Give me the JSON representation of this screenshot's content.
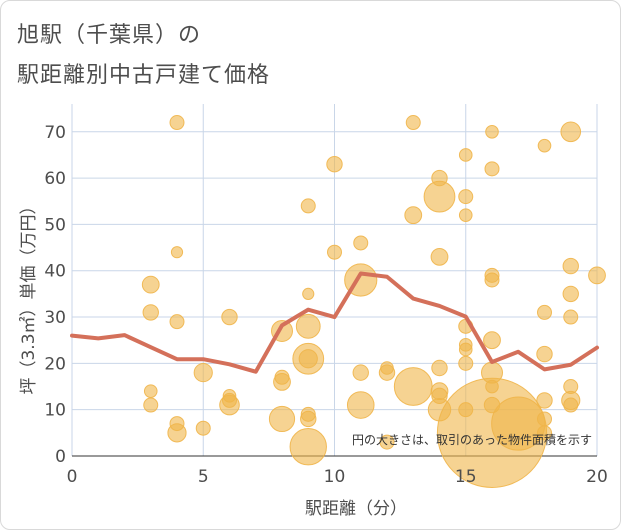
{
  "title_line1": "旭駅（千葉県）の",
  "title_line2": "駅距離別中古戸建て価格",
  "chart_data": {
    "type": "scatter",
    "title": "旭駅（千葉県）の駅距離別中古戸建て価格",
    "xlabel": "駅距離（分）",
    "ylabel": "坪（3.3㎡）単価（万円）",
    "xlim": [
      0,
      20
    ],
    "ylim": [
      0,
      76
    ],
    "xticks": [
      0,
      5,
      10,
      15,
      20
    ],
    "yticks": [
      0,
      10,
      20,
      30,
      40,
      50,
      60,
      70
    ],
    "grid": true,
    "note": "円の大きさは、取引のあった物件面積を示す",
    "colors": {
      "bubble": "#f0b54a",
      "line": "#d4705a",
      "grid": "#c9d6e8"
    },
    "bubbles": [
      {
        "x": 3,
        "y": 37,
        "s": 1.2
      },
      {
        "x": 3,
        "y": 31,
        "s": 1.1
      },
      {
        "x": 3,
        "y": 14,
        "s": 0.9
      },
      {
        "x": 3,
        "y": 11,
        "s": 1.0
      },
      {
        "x": 4,
        "y": 72,
        "s": 1.0
      },
      {
        "x": 4,
        "y": 44,
        "s": 0.8
      },
      {
        "x": 4,
        "y": 29,
        "s": 1.0
      },
      {
        "x": 4,
        "y": 7,
        "s": 1.0
      },
      {
        "x": 4,
        "y": 5,
        "s": 1.3
      },
      {
        "x": 5,
        "y": 18,
        "s": 1.3
      },
      {
        "x": 5,
        "y": 6,
        "s": 1.0
      },
      {
        "x": 6,
        "y": 30,
        "s": 1.1
      },
      {
        "x": 6,
        "y": 13,
        "s": 0.9
      },
      {
        "x": 6,
        "y": 12,
        "s": 1.0
      },
      {
        "x": 6,
        "y": 11,
        "s": 1.4
      },
      {
        "x": 8,
        "y": 27,
        "s": 1.5
      },
      {
        "x": 8,
        "y": 17,
        "s": 1.0
      },
      {
        "x": 8,
        "y": 16,
        "s": 1.2
      },
      {
        "x": 8,
        "y": 8,
        "s": 1.8
      },
      {
        "x": 9,
        "y": 54,
        "s": 1.0
      },
      {
        "x": 9,
        "y": 35,
        "s": 0.8
      },
      {
        "x": 9,
        "y": 28,
        "s": 1.7
      },
      {
        "x": 9,
        "y": 21,
        "s": 2.2
      },
      {
        "x": 9,
        "y": 21,
        "s": 1.3
      },
      {
        "x": 9,
        "y": 9,
        "s": 1.0
      },
      {
        "x": 9,
        "y": 8,
        "s": 1.1
      },
      {
        "x": 9,
        "y": 2,
        "s": 2.6
      },
      {
        "x": 10,
        "y": 63,
        "s": 1.1
      },
      {
        "x": 10,
        "y": 44,
        "s": 1.0
      },
      {
        "x": 11,
        "y": 46,
        "s": 1.0
      },
      {
        "x": 11,
        "y": 38,
        "s": 2.3
      },
      {
        "x": 11,
        "y": 18,
        "s": 1.1
      },
      {
        "x": 11,
        "y": 11,
        "s": 1.9
      },
      {
        "x": 12,
        "y": 19,
        "s": 0.9
      },
      {
        "x": 12,
        "y": 18,
        "s": 1.1
      },
      {
        "x": 12,
        "y": 3,
        "s": 1.0
      },
      {
        "x": 13,
        "y": 72,
        "s": 1.0
      },
      {
        "x": 13,
        "y": 52,
        "s": 1.2
      },
      {
        "x": 13,
        "y": 15,
        "s": 2.7
      },
      {
        "x": 14,
        "y": 60,
        "s": 1.1
      },
      {
        "x": 14,
        "y": 56,
        "s": 2.2
      },
      {
        "x": 14,
        "y": 43,
        "s": 1.2
      },
      {
        "x": 14,
        "y": 19,
        "s": 1.1
      },
      {
        "x": 14,
        "y": 14,
        "s": 1.2
      },
      {
        "x": 14,
        "y": 13,
        "s": 1.1
      },
      {
        "x": 14,
        "y": 10,
        "s": 1.6
      },
      {
        "x": 15,
        "y": 65,
        "s": 0.9
      },
      {
        "x": 15,
        "y": 56,
        "s": 1.0
      },
      {
        "x": 15,
        "y": 52,
        "s": 0.9
      },
      {
        "x": 15,
        "y": 28,
        "s": 1.0
      },
      {
        "x": 15,
        "y": 24,
        "s": 0.9
      },
      {
        "x": 15,
        "y": 23,
        "s": 0.9
      },
      {
        "x": 15,
        "y": 20,
        "s": 1.0
      },
      {
        "x": 15,
        "y": 10,
        "s": 1.0
      },
      {
        "x": 16,
        "y": 70,
        "s": 0.9
      },
      {
        "x": 16,
        "y": 62,
        "s": 1.0
      },
      {
        "x": 16,
        "y": 39,
        "s": 1.0
      },
      {
        "x": 16,
        "y": 38,
        "s": 1.0
      },
      {
        "x": 16,
        "y": 25,
        "s": 1.2
      },
      {
        "x": 16,
        "y": 18,
        "s": 1.5
      },
      {
        "x": 16,
        "y": 15,
        "s": 0.9
      },
      {
        "x": 16,
        "y": 11,
        "s": 1.1
      },
      {
        "x": 16,
        "y": 5,
        "s": 7.8
      },
      {
        "x": 17,
        "y": 7,
        "s": 3.8
      },
      {
        "x": 18,
        "y": 67,
        "s": 0.9
      },
      {
        "x": 18,
        "y": 31,
        "s": 1.0
      },
      {
        "x": 18,
        "y": 22,
        "s": 1.1
      },
      {
        "x": 18,
        "y": 12,
        "s": 1.1
      },
      {
        "x": 18,
        "y": 8,
        "s": 1.0
      },
      {
        "x": 18,
        "y": 5,
        "s": 1.0
      },
      {
        "x": 19,
        "y": 70,
        "s": 1.4
      },
      {
        "x": 19,
        "y": 41,
        "s": 1.1
      },
      {
        "x": 19,
        "y": 35,
        "s": 1.1
      },
      {
        "x": 19,
        "y": 30,
        "s": 1.0
      },
      {
        "x": 19,
        "y": 15,
        "s": 1.0
      },
      {
        "x": 19,
        "y": 12,
        "s": 1.3
      },
      {
        "x": 19,
        "y": 11,
        "s": 1.0
      },
      {
        "x": 20,
        "y": 39,
        "s": 1.2
      }
    ],
    "line": {
      "x": [
        0,
        1,
        2,
        3,
        4,
        5,
        6,
        7,
        8,
        9,
        10,
        11,
        12,
        13,
        14,
        15,
        16,
        17,
        18,
        19,
        20
      ],
      "y": [
        26,
        25.4,
        26.1,
        23.5,
        20.9,
        20.9,
        19.8,
        18.2,
        28.2,
        31.6,
        30.0,
        39.4,
        38.7,
        34.0,
        32.4,
        30.1,
        20.3,
        22.5,
        18.7,
        19.7,
        23.4
      ]
    }
  }
}
